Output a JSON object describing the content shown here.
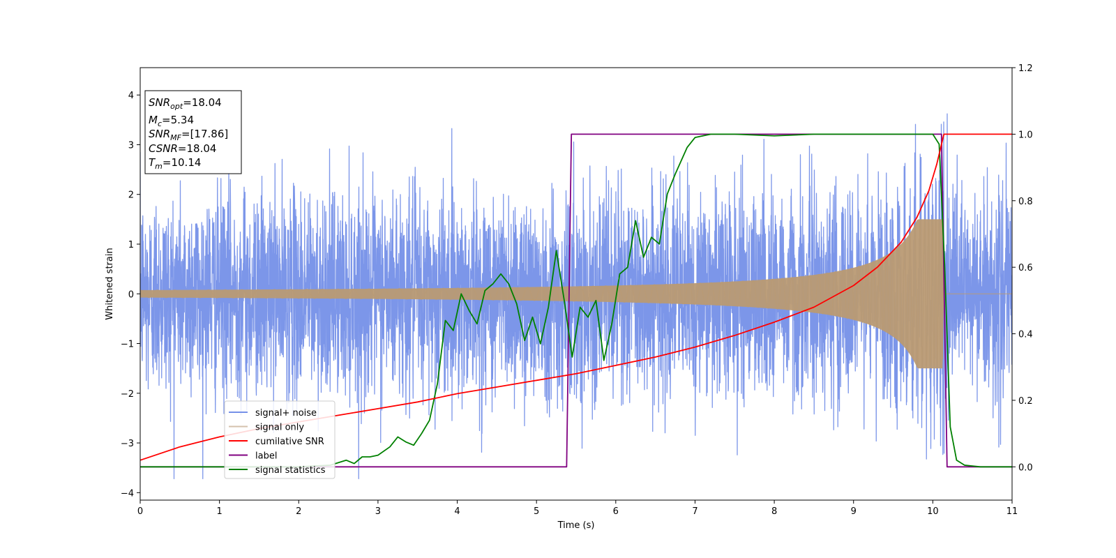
{
  "chart_data": {
    "type": "line",
    "xlabel": "Time (s)",
    "ylabel": "Whitened strain",
    "xlim": [
      0,
      11
    ],
    "ylim_left": [
      -4.15,
      4.55
    ],
    "ylim_right": [
      -0.1,
      1.2
    ],
    "x_ticks": [
      "0",
      "1",
      "2",
      "3",
      "4",
      "5",
      "6",
      "7",
      "8",
      "9",
      "10",
      "11"
    ],
    "y_left_ticks": [
      "−4",
      "−3",
      "−2",
      "−1",
      "0",
      "1",
      "2",
      "3",
      "4"
    ],
    "y_right_ticks": [
      "0.0",
      "0.2",
      "0.4",
      "0.6",
      "0.8",
      "1.0",
      "1.2"
    ],
    "grid": false,
    "legend_position": "lower-left",
    "series": [
      {
        "name": "signal+ noise",
        "axis": "left",
        "color": "#7590e8",
        "description_values": {
          "std_approx": 1.0,
          "min": -3.7,
          "max": 3.9,
          "t_start": 0,
          "t_end": 11
        }
      },
      {
        "name": "signal only",
        "axis": "left",
        "color": "#b99a74",
        "description_values": {
          "envelope_at_t0": 0.08,
          "envelope_peak": 1.5,
          "t_merger": 10.14
        }
      },
      {
        "name": "cumilative SNR",
        "axis": "right",
        "color": "#ff0000",
        "x": [
          0,
          0.5,
          1,
          1.5,
          2,
          2.5,
          3,
          3.5,
          4,
          4.5,
          5,
          5.5,
          6,
          6.5,
          7,
          7.5,
          8,
          8.5,
          9,
          9.3,
          9.6,
          9.8,
          9.95,
          10.05,
          10.14,
          11
        ],
        "y": [
          0.02,
          0.06,
          0.09,
          0.115,
          0.135,
          0.155,
          0.175,
          0.195,
          0.22,
          0.24,
          0.26,
          0.28,
          0.305,
          0.33,
          0.36,
          0.395,
          0.435,
          0.48,
          0.545,
          0.6,
          0.675,
          0.75,
          0.83,
          0.91,
          1.0,
          1.0
        ]
      },
      {
        "name": "label",
        "axis": "right",
        "color": "#800080",
        "x": [
          0,
          5.38,
          5.44,
          10.11,
          10.18,
          11
        ],
        "y": [
          0.0,
          0.0,
          1.0,
          1.0,
          0.0,
          0.0
        ]
      },
      {
        "name": "signal statistics",
        "axis": "right",
        "color": "#008000",
        "x": [
          0,
          1,
          2,
          2.4,
          2.6,
          2.7,
          2.8,
          2.9,
          3.0,
          3.15,
          3.25,
          3.35,
          3.45,
          3.55,
          3.65,
          3.75,
          3.85,
          3.95,
          4.05,
          4.15,
          4.25,
          4.35,
          4.45,
          4.55,
          4.65,
          4.75,
          4.85,
          4.95,
          5.05,
          5.15,
          5.25,
          5.35,
          5.45,
          5.55,
          5.65,
          5.75,
          5.85,
          5.95,
          6.05,
          6.15,
          6.25,
          6.35,
          6.45,
          6.55,
          6.65,
          6.75,
          6.9,
          7.0,
          7.2,
          7.5,
          8.0,
          8.5,
          9.0,
          9.5,
          10.0,
          10.08,
          10.15,
          10.22,
          10.3,
          10.4,
          10.6,
          11.0
        ],
        "y": [
          0.0,
          0.0,
          0.0,
          0.005,
          0.02,
          0.01,
          0.03,
          0.03,
          0.035,
          0.06,
          0.09,
          0.075,
          0.065,
          0.1,
          0.14,
          0.25,
          0.44,
          0.41,
          0.52,
          0.47,
          0.43,
          0.53,
          0.55,
          0.58,
          0.55,
          0.49,
          0.38,
          0.45,
          0.37,
          0.48,
          0.65,
          0.5,
          0.33,
          0.48,
          0.45,
          0.5,
          0.32,
          0.43,
          0.58,
          0.6,
          0.74,
          0.63,
          0.69,
          0.67,
          0.82,
          0.88,
          0.96,
          0.99,
          1.0,
          1.0,
          0.995,
          1.0,
          1.0,
          1.0,
          1.0,
          0.97,
          0.6,
          0.12,
          0.02,
          0.005,
          0.0,
          0.0
        ]
      }
    ],
    "annotation_lines": [
      {
        "pre": "SNR",
        "sub": "opt",
        "post": "=18.04"
      },
      {
        "pre": "M",
        "sub": "c",
        "post": "=5.34"
      },
      {
        "pre": "SNR",
        "sub": "MF",
        "post": "=[17.86]"
      },
      {
        "pre": "CSNR",
        "sub": "",
        "post": "=18.04"
      },
      {
        "pre": "T",
        "sub": "m",
        "post": "=10.14"
      }
    ]
  }
}
